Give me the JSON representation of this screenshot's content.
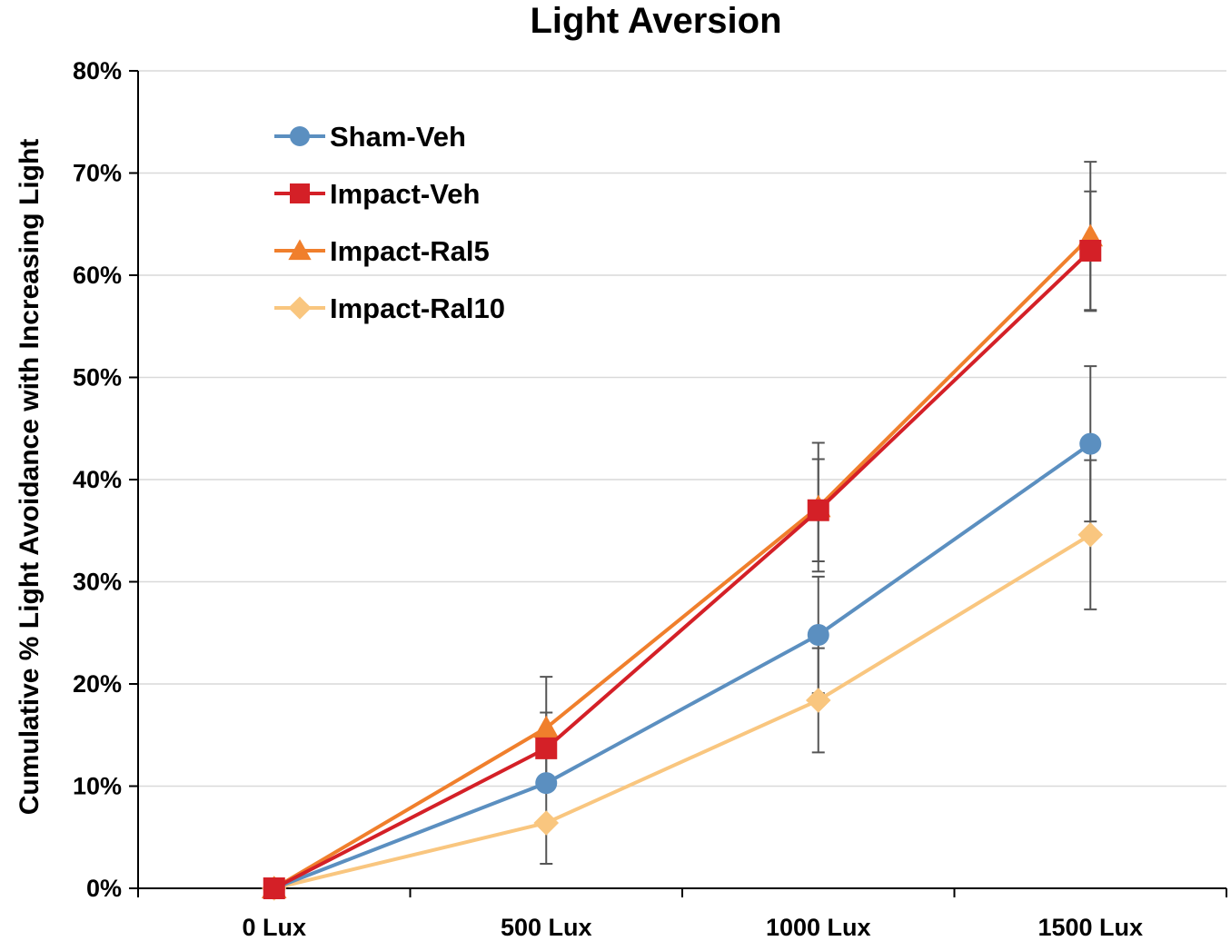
{
  "chart_data": {
    "type": "line",
    "title": "Light Aversion",
    "xlabel": "",
    "ylabel": "Cumulative % Light Avoidance with Increasing Light",
    "categories": [
      "0 Lux",
      "500 Lux",
      "1000 Lux",
      "1500 Lux"
    ],
    "ylim": [
      0,
      80
    ],
    "yticks": [
      0,
      10,
      20,
      30,
      40,
      50,
      60,
      70,
      80
    ],
    "ytick_labels": [
      "0%",
      "10%",
      "20%",
      "30%",
      "40%",
      "50%",
      "60%",
      "70%",
      "80%"
    ],
    "grid": true,
    "legend_position": "top-left",
    "series": [
      {
        "name": "Sham-Veh",
        "color": "#5b8fc0",
        "marker": "circle",
        "values": [
          0,
          10.3,
          24.8,
          43.5
        ],
        "errors": [
          0,
          0,
          5.7,
          7.6
        ]
      },
      {
        "name": "Impact-Veh",
        "color": "#d42027",
        "marker": "square",
        "values": [
          0,
          13.7,
          37.0,
          62.4
        ],
        "errors": [
          0,
          3.5,
          5.0,
          5.8
        ]
      },
      {
        "name": "Impact-Ral5",
        "color": "#f07f2c",
        "marker": "triangle",
        "values": [
          0,
          15.7,
          37.3,
          63.8
        ],
        "errors": [
          0,
          5.0,
          6.3,
          7.3
        ]
      },
      {
        "name": "Impact-Ral10",
        "color": "#f9c67f",
        "marker": "diamond",
        "values": [
          0,
          6.4,
          18.4,
          34.6
        ],
        "errors": [
          0,
          4.0,
          5.1,
          7.3
        ]
      }
    ]
  }
}
